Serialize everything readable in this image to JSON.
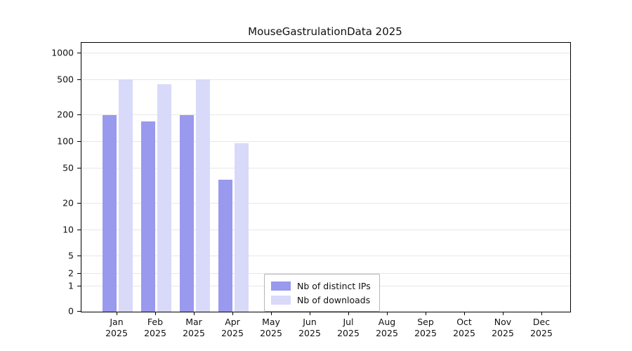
{
  "title": "MouseGastrulationData 2025",
  "chart_data": {
    "type": "bar",
    "title": "MouseGastrulationData 2025",
    "categories": [
      "Jan 2025",
      "Feb 2025",
      "Mar 2025",
      "Apr 2025",
      "May 2025",
      "Jun 2025",
      "Jul 2025",
      "Aug 2025",
      "Sep 2025",
      "Oct 2025",
      "Nov 2025",
      "Dec 2025"
    ],
    "series": [
      {
        "name": "Nb of distinct IPs",
        "color": "#9999ee",
        "values": [
          200,
          170,
          200,
          37,
          0,
          0,
          0,
          0,
          0,
          0,
          0,
          0
        ]
      },
      {
        "name": "Nb of downloads",
        "color": "#d9d9fa",
        "values": [
          510,
          450,
          510,
          96,
          0,
          0,
          0,
          0,
          0,
          0,
          0,
          0
        ]
      }
    ],
    "yticks": [
      0,
      1,
      2,
      5,
      10,
      20,
      50,
      100,
      200,
      500,
      1000
    ],
    "ylim": [
      0,
      1200
    ],
    "xlabel": "",
    "ylabel": "",
    "y_scale": "log-like",
    "grid": true,
    "legend_position": "bottom-center-inside"
  }
}
